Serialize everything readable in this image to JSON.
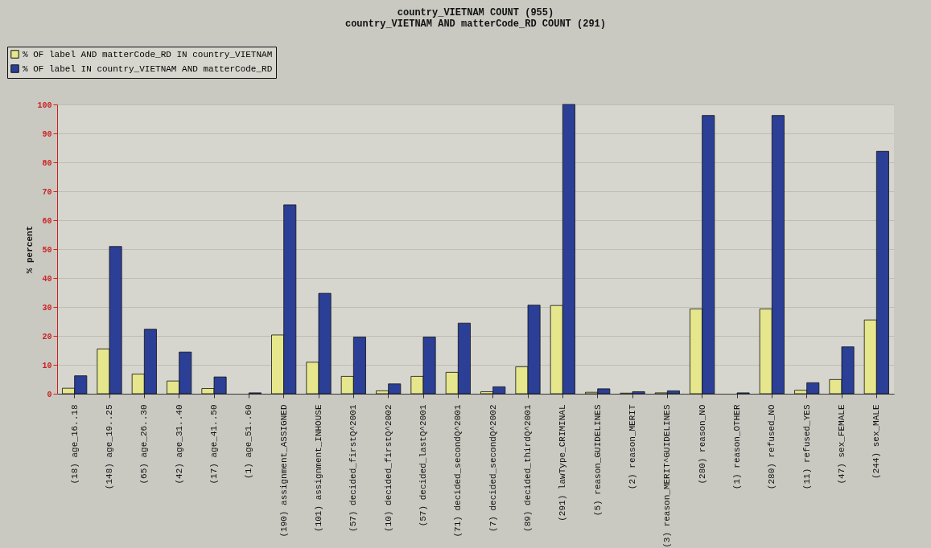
{
  "chart_data": {
    "type": "bar",
    "title": [
      "country_VIETNAM COUNT (955)",
      "country_VIETNAM AND matterCode_RD COUNT (291)"
    ],
    "ylabel": "% percent",
    "categories": [
      "(18) age_16..18",
      "(148) age_19..25",
      "(65) age_26..30",
      "(42) age_31..40",
      "(17) age_41..50",
      "(1) age_51..60",
      "(190) assignment_ASSIGNED",
      "(101) assignment_INHOUSE",
      "(57) decided_firstQ^2001",
      "(10) decided_firstQ^2002",
      "(57) decided_lastQ^2001",
      "(71) decided_secondQ^2001",
      "(7) decided_secondQ^2002",
      "(89) decided_thirdQ^2001",
      "(291) lawType_CRIMINAL",
      "(5) reason_GUIDELINES",
      "(2) reason_MERIT",
      "(3) reason_MERIT^GUIDELINES",
      "(280) reason_NO",
      "(1) reason_OTHER",
      "(280) refused_NO",
      "(11) refused_YES",
      "(47) sex_FEMALE",
      "(244) sex_MALE"
    ],
    "series": [
      {
        "name": "% OF label AND matterCode_RD IN country_VIETNAM",
        "color": "#e6e68c",
        "values": [
          1.9,
          15.5,
          6.8,
          4.4,
          1.8,
          null,
          20.3,
          10.9,
          6.0,
          1.0,
          6.0,
          7.4,
          0.7,
          9.3,
          30.5,
          0.5,
          0.2,
          0.3,
          29.3,
          null,
          29.3,
          1.2,
          4.9,
          25.5
        ]
      },
      {
        "name": "% OF label IN country_VIETNAM AND matterCode_RD",
        "color": "#2b3f96",
        "values": [
          6.2,
          50.9,
          22.3,
          14.4,
          5.8,
          0.3,
          65.3,
          34.7,
          19.6,
          3.4,
          19.6,
          24.4,
          2.4,
          30.6,
          100,
          1.7,
          0.7,
          1.0,
          96.2,
          0.3,
          96.2,
          3.8,
          16.2,
          83.8
        ]
      }
    ],
    "ylim": [
      0,
      100
    ],
    "yticks": [
      0,
      10,
      20,
      30,
      40,
      50,
      60,
      70,
      80,
      90,
      100
    ],
    "grid": "y",
    "legend": "top left"
  }
}
